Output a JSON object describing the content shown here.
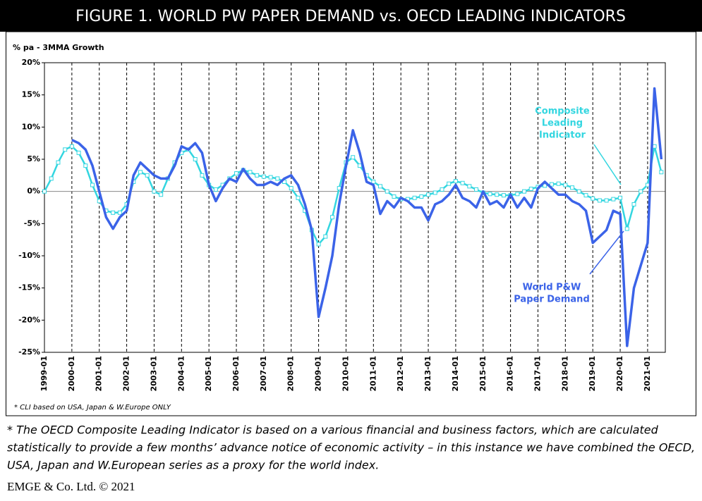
{
  "chart_data": {
    "type": "line",
    "title": "FIGURE 1. WORLD PW PAPER DEMAND vs. OECD LEADING INDICATORS",
    "y_label": "% pa - 3MMA Growth",
    "categories": [
      "1999-01",
      null,
      null,
      null,
      "2000-01",
      null,
      null,
      null,
      "2001-01",
      null,
      null,
      null,
      "2002-01",
      null,
      null,
      null,
      "2003-01",
      null,
      null,
      null,
      "2004-01",
      null,
      null,
      null,
      "2005-01",
      null,
      null,
      null,
      "2006-01",
      null,
      null,
      null,
      "2007-01",
      null,
      null,
      null,
      "2008-01",
      null,
      null,
      null,
      "2009-01",
      null,
      null,
      null,
      "2010-01",
      null,
      null,
      null,
      "2011-01",
      null,
      null,
      null,
      "2012-01",
      null,
      null,
      null,
      "2013-01",
      null,
      null,
      null,
      "2014-01",
      null,
      null,
      null,
      "2015-01",
      null,
      null,
      null,
      "2016-01",
      null,
      null,
      null,
      "2017-01",
      null,
      null,
      null,
      "2018-01",
      null,
      null,
      null,
      "2019-01",
      null,
      null,
      null,
      "2020-01",
      null,
      null,
      null,
      "2021-01",
      null,
      null
    ],
    "series": [
      {
        "name": "Composite Leading Indicator",
        "color": "#33d6e0",
        "values": [
          0,
          2,
          4.5,
          6.5,
          7,
          6,
          4,
          1,
          -1.5,
          -3,
          -3.3,
          -3.3,
          -2,
          1.5,
          3,
          2.5,
          0,
          -0.5,
          2,
          4.5,
          6,
          6.5,
          5,
          2.5,
          1,
          0.3,
          1,
          2,
          2.8,
          3.3,
          3,
          2.5,
          2.3,
          2.2,
          2,
          1.5,
          0.5,
          -1,
          -3,
          -6,
          -8.2,
          -7,
          -4,
          0.5,
          4.5,
          5.3,
          4,
          2.5,
          1.5,
          0.8,
          0,
          -0.8,
          -1.2,
          -1.2,
          -1,
          -0.8,
          -0.5,
          -0.2,
          0.3,
          1.2,
          1.6,
          1.3,
          0.8,
          0.3,
          -0.2,
          -0.4,
          -0.5,
          -0.6,
          -0.6,
          -0.4,
          0,
          0.4,
          0.7,
          0.9,
          1.1,
          1.2,
          1,
          0.6,
          0,
          -0.6,
          -1.1,
          -1.4,
          -1.4,
          -1.2,
          -1,
          -5.8,
          -2,
          0,
          1,
          7,
          3
        ]
      },
      {
        "name": "World P&W Paper Demand",
        "color": "#3b63e8",
        "values": [
          null,
          null,
          null,
          null,
          8,
          7.5,
          6.5,
          4,
          0,
          -4,
          -5.8,
          -4,
          -3,
          2.5,
          4.5,
          3.5,
          2.5,
          2,
          2,
          4,
          7,
          6.5,
          7.5,
          6,
          1,
          -1.5,
          0.5,
          2,
          1.5,
          3.5,
          2,
          1,
          1,
          1.5,
          1,
          2,
          2.5,
          1,
          -2,
          -6,
          -19.5,
          -15,
          -10,
          -2,
          4,
          9.5,
          6,
          1.5,
          1,
          -3.5,
          -1.5,
          -2.5,
          -1,
          -1.5,
          -2.5,
          -2.5,
          -4.5,
          -2,
          -1.5,
          -0.5,
          1,
          -1,
          -1.5,
          -2.5,
          0,
          -2,
          -1.5,
          -2.5,
          -0.5,
          -2.5,
          -1,
          -2.5,
          0.5,
          1.5,
          0.5,
          -0.5,
          -0.5,
          -1.5,
          -2,
          -3,
          -8,
          -7,
          -6,
          -3,
          -3.5,
          -24,
          -15,
          -11.5,
          -8,
          16,
          5
        ]
      }
    ],
    "annotations": [
      {
        "lines": [
          "Composite",
          "Leading",
          "Indicator"
        ],
        "color": "#33d6e0"
      },
      {
        "lines": [
          "World P&W",
          "Paper Demand"
        ],
        "color": "#3b63e8"
      }
    ],
    "ylim": [
      -25,
      20
    ],
    "yticks": [
      {
        "value": -25,
        "label": "-25%"
      },
      {
        "value": -20,
        "label": "-20%"
      },
      {
        "value": -15,
        "label": "-15%"
      },
      {
        "value": -10,
        "label": "-10%"
      },
      {
        "value": -5,
        "label": "-5%"
      },
      {
        "value": 0,
        "label": "0%"
      },
      {
        "value": 5,
        "label": "5%"
      },
      {
        "value": 10,
        "label": "10%"
      },
      {
        "value": 15,
        "label": "15%"
      },
      {
        "value": 20,
        "label": "20%"
      }
    ],
    "footnote": "* CLI based on USA, Japan & W.Europe ONLY"
  },
  "notes": [
    "* The OECD Composite Leading Indicator is based on a various financial and business factors, which are calculated",
    "statistically to provide a few months’ advance notice of economic activity – in this instance we have combined the OECD,",
    "USA, Japan and W.European series as a proxy for the world index."
  ],
  "copyright": "EMGE & Co. Ltd. © 2021"
}
